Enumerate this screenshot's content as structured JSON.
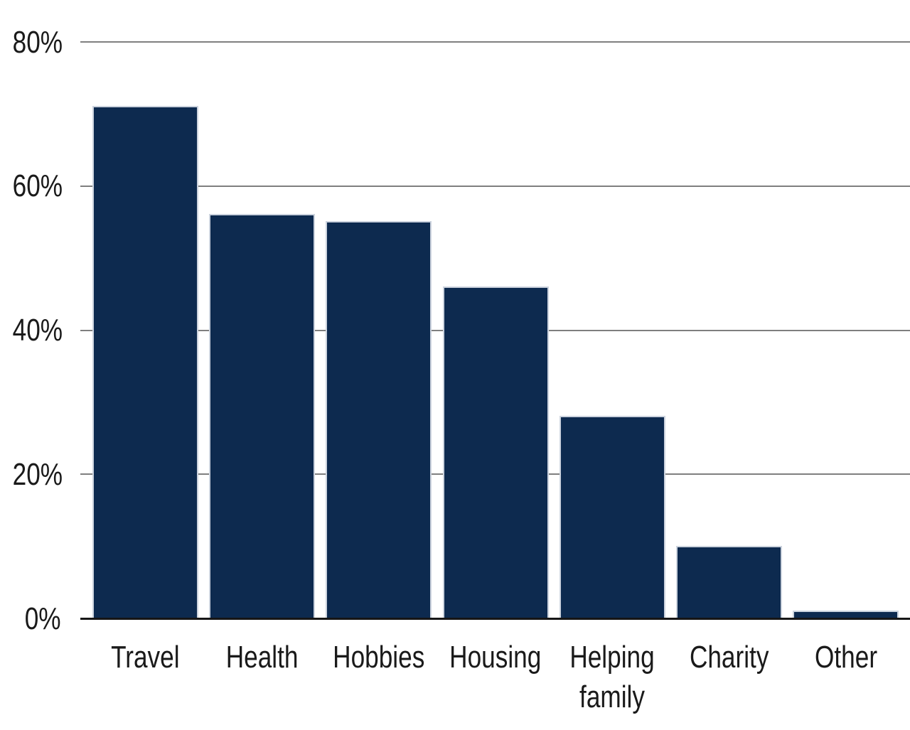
{
  "chart_data": {
    "type": "bar",
    "title": "",
    "xlabel": "",
    "ylabel": "",
    "categories": [
      "Travel",
      "Health",
      "Hobbies",
      "Housing",
      "Helping family",
      "Charity",
      "Other"
    ],
    "values": [
      71,
      56,
      55,
      46,
      28,
      10,
      1
    ],
    "ylim": [
      0,
      85
    ],
    "yticks": [
      0,
      20,
      40,
      60,
      80
    ],
    "ytick_suffix": "%",
    "grid": true,
    "legend": "none",
    "colors": {
      "bar_fill": "#0d2a4f",
      "bar_edge": "#ccd3de",
      "gridline": "#7f7f7f",
      "axis_line": "#161616",
      "text": "#1a1a1a",
      "background": "#ffffff"
    }
  }
}
